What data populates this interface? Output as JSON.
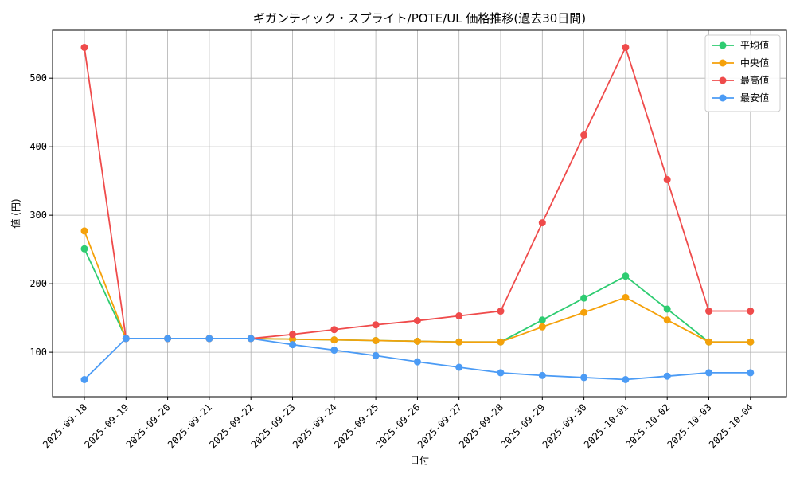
{
  "chart_data": {
    "type": "line",
    "title": "ギガンティック・スプライト/POTE/UL 価格推移(過去30日間)",
    "xlabel": "日付",
    "ylabel": "値 (円)",
    "categories": [
      "2025-09-18",
      "2025-09-19",
      "2025-09-20",
      "2025-09-21",
      "2025-09-22",
      "2025-09-23",
      "2025-09-24",
      "2025-09-25",
      "2025-09-26",
      "2025-09-27",
      "2025-09-28",
      "2025-09-29",
      "2025-09-30",
      "2025-10-01",
      "2025-10-02",
      "2025-10-03",
      "2025-10-04"
    ],
    "ylim": [
      35,
      570
    ],
    "yticks": [
      100,
      200,
      300,
      400,
      500
    ],
    "grid": true,
    "legend_position": "top-right",
    "series": [
      {
        "name": "平均値",
        "color": "#2ecc71",
        "values": [
          251,
          120,
          120,
          120,
          120,
          119,
          118,
          117,
          116,
          115,
          115,
          147,
          179,
          211,
          163,
          115,
          115
        ]
      },
      {
        "name": "中央値",
        "color": "#f5a10a",
        "values": [
          277,
          120,
          120,
          120,
          120,
          119,
          118,
          117,
          116,
          115,
          115,
          137,
          158,
          180,
          147,
          115,
          115
        ]
      },
      {
        "name": "最高値",
        "color": "#ef4b4b",
        "values": [
          545,
          120,
          120,
          120,
          120,
          126,
          133,
          140,
          146,
          153,
          160,
          289,
          417,
          545,
          352,
          160,
          160
        ]
      },
      {
        "name": "最安値",
        "color": "#4b9bf5",
        "values": [
          60,
          120,
          120,
          120,
          120,
          111,
          103,
          95,
          86,
          78,
          70,
          66,
          63,
          60,
          65,
          70,
          70
        ]
      }
    ]
  }
}
